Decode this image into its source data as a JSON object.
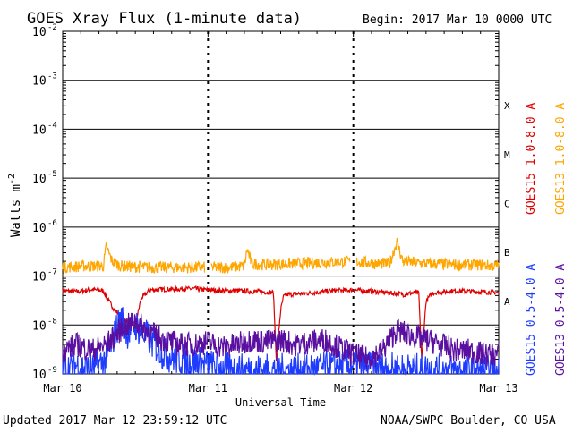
{
  "chart_data": {
    "type": "line",
    "title": "GOES Xray Flux (1-minute data)",
    "begin_label": "Begin:  2017 Mar 10 0000 UTC",
    "xlabel": "Universal Time",
    "ylabel": "Watts m",
    "ylabel_exponent": "-2",
    "y_scale": "log",
    "ylim": [
      1e-09,
      0.01
    ],
    "y_ticks": [
      {
        "base": "10",
        "exp": "-2",
        "value": 0.01
      },
      {
        "base": "10",
        "exp": "-3",
        "value": 0.001
      },
      {
        "base": "10",
        "exp": "-4",
        "value": 0.0001
      },
      {
        "base": "10",
        "exp": "-5",
        "value": 1e-05
      },
      {
        "base": "10",
        "exp": "-6",
        "value": 1e-06
      },
      {
        "base": "10",
        "exp": "-7",
        "value": 1e-07
      },
      {
        "base": "10",
        "exp": "-8",
        "value": 1e-08
      },
      {
        "base": "10",
        "exp": "-9",
        "value": 1e-09
      }
    ],
    "x_ticks": [
      "Mar 10",
      "Mar 11",
      "Mar 12",
      "Mar 13"
    ],
    "xlim_days": [
      0,
      3
    ],
    "flare_classes": [
      {
        "label": "X",
        "min": 0.0001
      },
      {
        "label": "M",
        "min": 1e-05
      },
      {
        "label": "C",
        "min": 1e-06
      },
      {
        "label": "B",
        "min": 1e-07
      },
      {
        "label": "A",
        "min": 1e-08
      }
    ],
    "grid": true,
    "legend_position": "right",
    "series": [
      {
        "name": "GOES15 1.0-8.0 A",
        "color": "#e00000",
        "points": [
          [
            0,
            5e-08
          ],
          [
            0.1,
            4.8e-08
          ],
          [
            0.2,
            5.3e-08
          ],
          [
            0.28,
            5e-08
          ],
          [
            0.32,
            3e-08
          ],
          [
            0.36,
            2e-08
          ],
          [
            0.4,
            1.5e-08
          ],
          [
            0.44,
            1.2e-08
          ],
          [
            0.5,
            1e-08
          ],
          [
            0.54,
            3.5e-08
          ],
          [
            0.6,
            5.2e-08
          ],
          [
            0.75,
            5.4e-08
          ],
          [
            0.9,
            5.5e-08
          ],
          [
            1.0,
            5.2e-08
          ],
          [
            1.1,
            5e-08
          ],
          [
            1.2,
            5e-08
          ],
          [
            1.35,
            4.8e-08
          ],
          [
            1.45,
            4.6e-08
          ],
          [
            1.47,
            2e-09
          ],
          [
            1.5,
            2e-08
          ],
          [
            1.52,
            3.8e-08
          ],
          [
            1.55,
            4.2e-08
          ],
          [
            1.7,
            4.5e-08
          ],
          [
            1.85,
            5e-08
          ],
          [
            2.0,
            5.2e-08
          ],
          [
            2.15,
            4.8e-08
          ],
          [
            2.25,
            4.5e-08
          ],
          [
            2.35,
            4.2e-08
          ],
          [
            2.4,
            4.5e-08
          ],
          [
            2.45,
            4.5e-08
          ],
          [
            2.47,
            2e-09
          ],
          [
            2.5,
            3e-08
          ],
          [
            2.54,
            4.5e-08
          ],
          [
            2.7,
            5e-08
          ],
          [
            2.85,
            4.8e-08
          ],
          [
            3.0,
            4.6e-08
          ]
        ]
      },
      {
        "name": "GOES13 1.0-8.0 A",
        "color": "#ffa500",
        "points": [
          [
            0,
            1.5e-07
          ],
          [
            0.15,
            1.6e-07
          ],
          [
            0.28,
            1.6e-07
          ],
          [
            0.3,
            4e-07
          ],
          [
            0.34,
            2e-07
          ],
          [
            0.4,
            1.6e-07
          ],
          [
            0.6,
            1.5e-07
          ],
          [
            0.8,
            1.5e-07
          ],
          [
            1.0,
            1.5e-07
          ],
          [
            1.15,
            1.5e-07
          ],
          [
            1.25,
            1.6e-07
          ],
          [
            1.27,
            3.5e-07
          ],
          [
            1.3,
            1.8e-07
          ],
          [
            1.4,
            1.7e-07
          ],
          [
            1.6,
            1.8e-07
          ],
          [
            1.8,
            1.9e-07
          ],
          [
            2.0,
            2e-07
          ],
          [
            2.15,
            1.8e-07
          ],
          [
            2.25,
            1.8e-07
          ],
          [
            2.3,
            5e-07
          ],
          [
            2.34,
            2e-07
          ],
          [
            2.5,
            1.8e-07
          ],
          [
            2.7,
            1.7e-07
          ],
          [
            2.85,
            1.7e-07
          ],
          [
            3.0,
            1.6e-07
          ]
        ],
        "gaps": [
          [
            0.98,
            1.02
          ],
          [
            1.98,
            2.02
          ]
        ]
      },
      {
        "name": "GOES15 0.5-4.0 A",
        "color": "#1e3cff",
        "points": [
          [
            0,
            1.2e-09
          ],
          [
            0.1,
            1.5e-09
          ],
          [
            0.2,
            1.2e-09
          ],
          [
            0.3,
            2e-09
          ],
          [
            0.4,
            1.5e-08
          ],
          [
            0.44,
            7e-09
          ],
          [
            0.5,
            1e-08
          ],
          [
            0.6,
            5e-09
          ],
          [
            0.7,
            2.5e-09
          ],
          [
            0.8,
            2e-09
          ],
          [
            0.9,
            1.8e-09
          ],
          [
            1.0,
            1.5e-09
          ],
          [
            1.1,
            1.3e-09
          ],
          [
            1.2,
            1.2e-09
          ],
          [
            1.4,
            1.2e-09
          ],
          [
            1.6,
            1.2e-09
          ],
          [
            1.8,
            1.3e-09
          ],
          [
            2.0,
            1.5e-09
          ],
          [
            2.2,
            1.3e-09
          ],
          [
            2.4,
            1.2e-09
          ],
          [
            2.6,
            1.2e-09
          ],
          [
            2.8,
            1.1e-09
          ],
          [
            3.0,
            1.1e-09
          ]
        ]
      },
      {
        "name": "GOES13 0.5-4.0 A",
        "color": "#5a0fa0",
        "points": [
          [
            0,
            3e-09
          ],
          [
            0.1,
            4e-09
          ],
          [
            0.2,
            3e-09
          ],
          [
            0.3,
            4e-09
          ],
          [
            0.4,
            8e-09
          ],
          [
            0.5,
            1.2e-08
          ],
          [
            0.6,
            7e-09
          ],
          [
            0.7,
            5e-09
          ],
          [
            0.8,
            4e-09
          ],
          [
            0.9,
            4e-09
          ],
          [
            1.0,
            4.5e-09
          ],
          [
            1.1,
            3.5e-09
          ],
          [
            1.2,
            4e-09
          ],
          [
            1.3,
            5e-09
          ],
          [
            1.4,
            4.5e-09
          ],
          [
            1.5,
            5e-09
          ],
          [
            1.6,
            4e-09
          ],
          [
            1.8,
            5e-09
          ],
          [
            2.0,
            2.5e-09
          ],
          [
            2.1,
            2e-09
          ],
          [
            2.2,
            3e-09
          ],
          [
            2.3,
            8e-09
          ],
          [
            2.4,
            6e-09
          ],
          [
            2.5,
            5e-09
          ],
          [
            2.6,
            4e-09
          ],
          [
            2.7,
            3e-09
          ],
          [
            2.8,
            3e-09
          ],
          [
            2.9,
            2.5e-09
          ],
          [
            3.0,
            2.5e-09
          ]
        ]
      }
    ]
  },
  "footer": {
    "updated": "Updated 2017 Mar 12 23:59:12 UTC",
    "credit": "NOAA/SWPC Boulder, CO USA"
  }
}
